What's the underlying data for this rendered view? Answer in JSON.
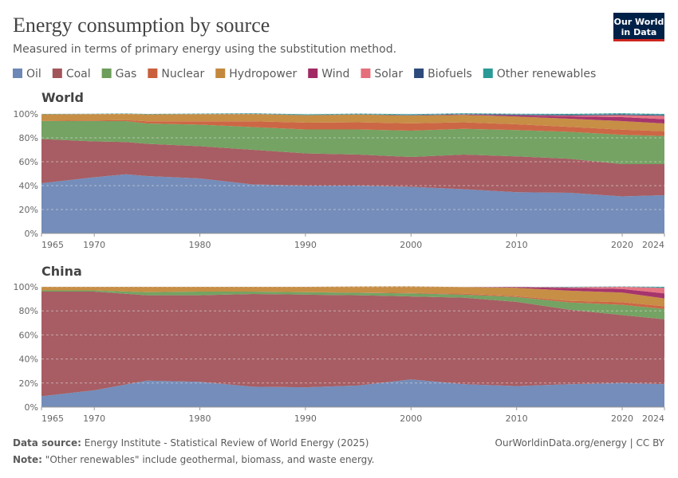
{
  "title": "Energy consumption by source",
  "subtitle": "Measured in terms of primary energy using the substitution method.",
  "logo": [
    "Our World",
    "in Data"
  ],
  "footer": {
    "source_label": "Data source:",
    "source": "Energy Institute - Statistical Review of World Energy (2025)",
    "note_label": "Note:",
    "note": "\"Other renewables\" include geothermal, biomass, and waste energy.",
    "credit": "OurWorldinData.org/energy | CC BY"
  },
  "chart_data": [
    {
      "type": "area",
      "stacked": true,
      "title": "World",
      "x": [
        1965,
        1970,
        1973,
        1975,
        1980,
        1985,
        1990,
        1995,
        2000,
        2005,
        2010,
        2015,
        2020,
        2024
      ],
      "xlim": [
        1965,
        2024
      ],
      "xticks": [
        1965,
        1970,
        1980,
        1990,
        2000,
        2010,
        2020,
        2024
      ],
      "ylim": [
        0,
        100
      ],
      "yticks": [
        {
          "value": 0,
          "label": "0%"
        },
        {
          "value": 20,
          "label": "20%"
        },
        {
          "value": 40,
          "label": "40%"
        },
        {
          "value": 60,
          "label": "60%"
        },
        {
          "value": 80,
          "label": "80%"
        },
        {
          "value": 100,
          "label": "100%"
        }
      ],
      "grid": true,
      "series": [
        {
          "name": "Oil",
          "color": "#6D87B6",
          "values": [
            42,
            47,
            49.5,
            48,
            46,
            41,
            40,
            40,
            39,
            37,
            34.5,
            34,
            31,
            32
          ]
        },
        {
          "name": "Coal",
          "color": "#A2545B",
          "values": [
            37,
            30,
            27,
            27,
            27,
            29,
            27,
            26,
            25,
            29,
            30,
            28.5,
            27,
            26
          ]
        },
        {
          "name": "Gas",
          "color": "#6D9E5B",
          "values": [
            15,
            17,
            17.5,
            17,
            18,
            19,
            20,
            21,
            22,
            21.5,
            22,
            22.5,
            24.5,
            23.5
          ]
        },
        {
          "name": "Nuclear",
          "color": "#C95F3B",
          "values": [
            0.2,
            0.5,
            0.9,
            1.8,
            2.8,
            4.8,
            5.7,
            6,
            6.1,
            5.5,
            4.8,
            4.2,
            4.3,
            4
          ]
        },
        {
          "name": "Hydropower",
          "color": "#C4883C",
          "values": [
            5.5,
            5.4,
            5.2,
            5.8,
            6,
            6.1,
            6.2,
            6.5,
            6.6,
            6.2,
            6.5,
            6.8,
            7.2,
            6.5
          ]
        },
        {
          "name": "Wind",
          "color": "#A12A64",
          "values": [
            0,
            0,
            0,
            0,
            0,
            0,
            0,
            0,
            0.1,
            0.3,
            1,
            2,
            3.3,
            3.6
          ]
        },
        {
          "name": "Solar",
          "color": "#E56E7B",
          "values": [
            0,
            0,
            0,
            0,
            0,
            0,
            0,
            0,
            0,
            0,
            0.1,
            0.7,
            1.7,
            2.8
          ]
        },
        {
          "name": "Biofuels",
          "color": "#2C4A7A",
          "values": [
            0,
            0,
            0,
            0,
            0.1,
            0.2,
            0.2,
            0.2,
            0.3,
            0.4,
            0.6,
            0.6,
            0.7,
            0.7
          ]
        },
        {
          "name": "Other renewables",
          "color": "#2A9A97",
          "values": [
            0.3,
            0.3,
            0.3,
            0.4,
            0.4,
            0.5,
            0.6,
            0.6,
            0.7,
            0.7,
            0.7,
            0.8,
            0.9,
            0.9
          ]
        }
      ]
    },
    {
      "type": "area",
      "stacked": true,
      "title": "China",
      "x": [
        1965,
        1970,
        1975,
        1980,
        1985,
        1990,
        1995,
        2000,
        2005,
        2010,
        2015,
        2020,
        2024
      ],
      "xlim": [
        1965,
        2024
      ],
      "xticks": [
        1965,
        1970,
        1980,
        1990,
        2000,
        2010,
        2020,
        2024
      ],
      "ylim": [
        0,
        100
      ],
      "yticks": [
        {
          "value": 0,
          "label": "0%"
        },
        {
          "value": 20,
          "label": "20%"
        },
        {
          "value": 40,
          "label": "40%"
        },
        {
          "value": 60,
          "label": "60%"
        },
        {
          "value": 80,
          "label": "80%"
        },
        {
          "value": 100,
          "label": "100%"
        }
      ],
      "grid": true,
      "series": [
        {
          "color": "#6D87B6",
          "values": [
            9,
            14,
            22,
            21,
            17,
            16.5,
            18,
            23,
            19,
            17.5,
            19,
            20,
            19
          ]
        },
        {
          "color": "#A2545B",
          "values": [
            87,
            82,
            71,
            72,
            77,
            77,
            75,
            69,
            72,
            70,
            62,
            56.5,
            54
          ]
        },
        {
          "color": "#6D9E5B",
          "values": [
            1,
            1,
            2.5,
            3,
            2,
            2,
            2,
            2.5,
            2.5,
            4,
            6,
            8.5,
            8.5
          ]
        },
        {
          "color": "#C95F3B",
          "values": [
            0,
            0,
            0,
            0,
            0,
            0,
            0.3,
            0.4,
            0.8,
            0.7,
            1.3,
            2.2,
            2.3
          ]
        },
        {
          "color": "#C4883C",
          "values": [
            3,
            3,
            4.5,
            4,
            4,
            4.5,
            5,
            5.5,
            5.5,
            7,
            8.5,
            8,
            6.5
          ]
        },
        {
          "color": "#A12A64",
          "values": [
            0,
            0,
            0,
            0,
            0,
            0,
            0,
            0,
            0,
            0.6,
            2.1,
            3,
            4.2
          ]
        },
        {
          "color": "#E56E7B",
          "values": [
            0,
            0,
            0,
            0,
            0,
            0,
            0,
            0,
            0,
            0,
            0.6,
            1.8,
            4.5
          ]
        },
        {
          "color": "#2C4A7A",
          "values": [
            0,
            0,
            0,
            0,
            0,
            0,
            0,
            0,
            0,
            0.1,
            0.1,
            0.1,
            0.2
          ]
        },
        {
          "color": "#2A9A97",
          "values": [
            0,
            0,
            0,
            0,
            0,
            0,
            0,
            0,
            0,
            0,
            0.4,
            0.2,
            0.8
          ]
        }
      ]
    }
  ]
}
